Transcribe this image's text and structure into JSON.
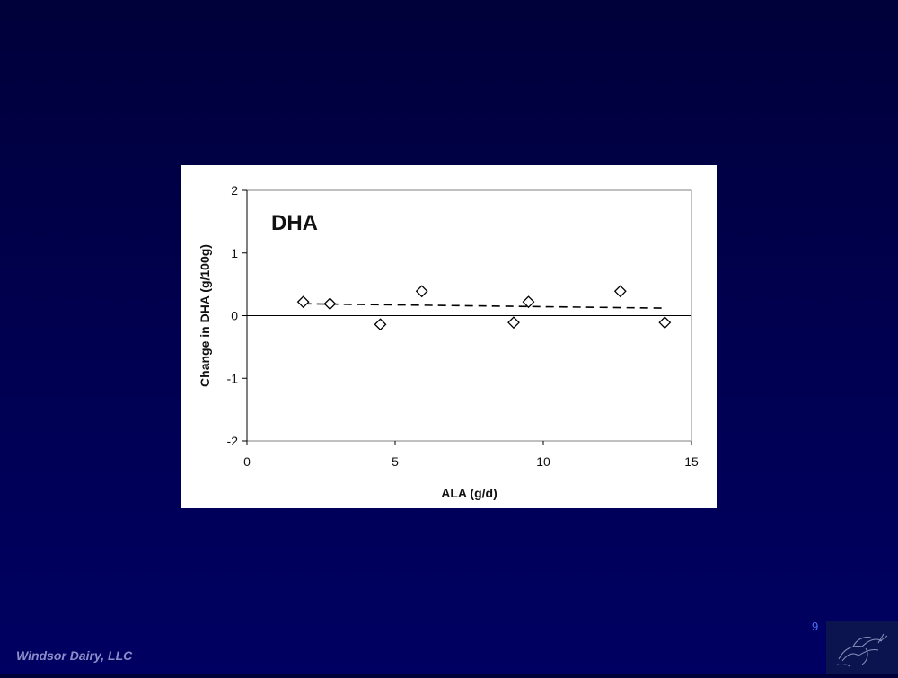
{
  "slide": {
    "company": "Windsor Dairy, LLC",
    "page_number": "9"
  },
  "logo": {
    "icon": "cow-sketch-icon"
  },
  "chart_data": {
    "type": "scatter",
    "title": "DHA",
    "xlabel": "ALA (g/d)",
    "ylabel": "Change in DHA (g/100g)",
    "xlim": [
      0,
      15
    ],
    "ylim": [
      -2,
      2
    ],
    "xticks": [
      0,
      5,
      10,
      15
    ],
    "yticks": [
      -2,
      -1,
      0,
      1,
      2
    ],
    "grid": false,
    "legend": "none",
    "series": [
      {
        "marker": "open-diamond",
        "points": [
          {
            "x": 1.9,
            "y": 0.22
          },
          {
            "x": 2.8,
            "y": 0.19
          },
          {
            "x": 4.5,
            "y": -0.14
          },
          {
            "x": 5.9,
            "y": 0.39
          },
          {
            "x": 9.0,
            "y": -0.11
          },
          {
            "x": 9.5,
            "y": 0.22
          },
          {
            "x": 12.6,
            "y": 0.39
          },
          {
            "x": 14.1,
            "y": -0.11
          }
        ]
      }
    ],
    "trend_line": {
      "style": "dashed",
      "points": [
        {
          "x": 1.9,
          "y": 0.19
        },
        {
          "x": 14.1,
          "y": 0.12
        }
      ]
    },
    "colors": {
      "markers": "#000000",
      "axis": "#000000",
      "frame": "#808080"
    }
  }
}
